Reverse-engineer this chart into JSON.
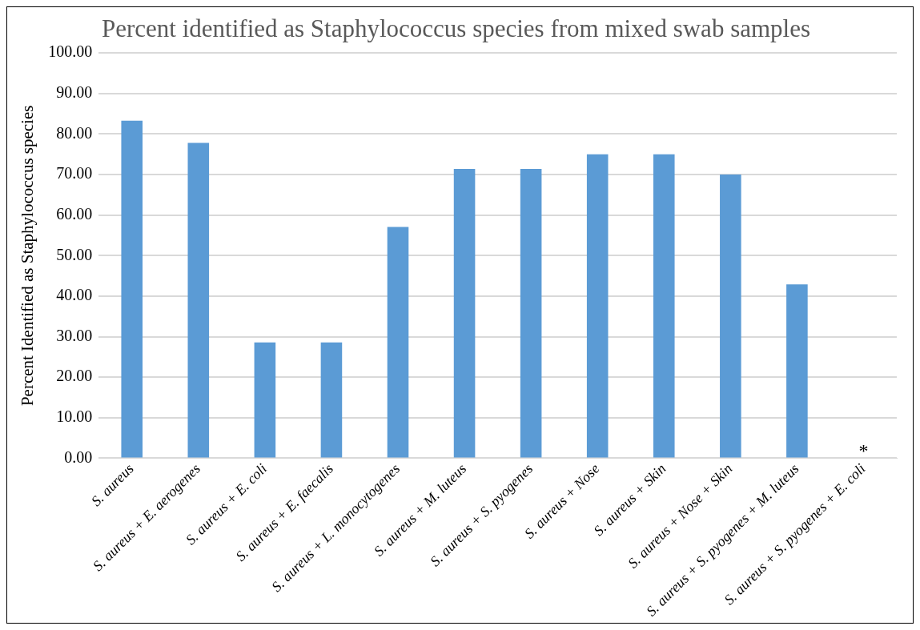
{
  "chart_data": {
    "type": "bar",
    "title": "Percent identified as Staphylococcus species from mixed swab samples",
    "ylabel": "Percent Identified as Staphylococcus species",
    "categories": [
      "S. aureus",
      "S. aureus + E. aerogenes",
      "S. aureus + E. coli",
      "S. aureus + E. faecalis",
      "S. aureus + L. monocytogenes",
      "S. aureus + M. luteus",
      "S. aureus + S. pyogenes",
      "S. aureus + Nose",
      "S. aureus + Skin",
      "S. aureus + Nose + Skin",
      "S. aureus + S. pyogenes + M. luteus",
      "S. aureus + S. pyogenes + E. coli"
    ],
    "values": [
      83.3,
      77.8,
      28.6,
      28.6,
      57.1,
      71.4,
      71.4,
      75,
      75,
      70,
      42.9,
      0
    ],
    "color": "#5b9bd5",
    "ylim": [
      0,
      100
    ],
    "yticks": [
      {
        "value": 0,
        "label": "0.00"
      },
      {
        "value": 10,
        "label": "10.00"
      },
      {
        "value": 20,
        "label": "20.00"
      },
      {
        "value": 30,
        "label": "30.00"
      },
      {
        "value": 40,
        "label": "40.00"
      },
      {
        "value": 50,
        "label": "50.00"
      },
      {
        "value": 60,
        "label": "60.00"
      },
      {
        "value": 70,
        "label": "70.00"
      },
      {
        "value": 80,
        "label": "80.00"
      },
      {
        "value": 90,
        "label": "90.00"
      },
      {
        "value": 100,
        "label": "100.00"
      }
    ],
    "grid": "y",
    "annotations": [
      {
        "text": "*",
        "x": "S. aureus + S. pyogenes + E. coli",
        "y": 0
      }
    ]
  }
}
